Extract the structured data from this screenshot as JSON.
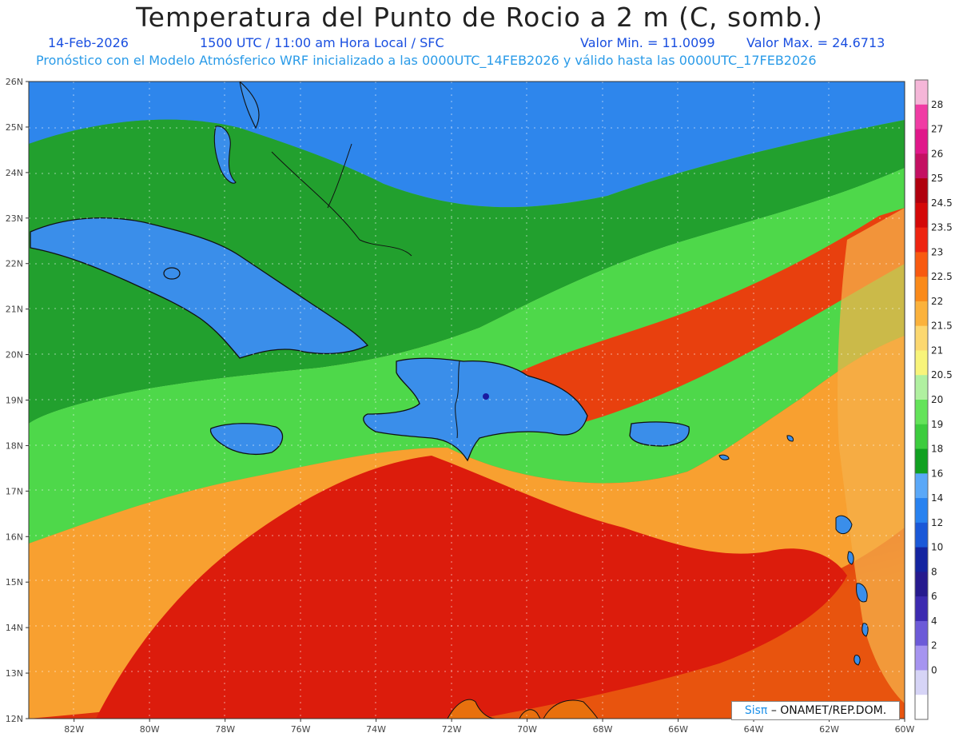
{
  "header": {
    "title": "Temperatura del Punto de Rocio a 2 m (C, somb.)",
    "date": "14-Feb-2026",
    "time": "1500 UTC / 11:00 am Hora Local / SFC",
    "min_value": "Valor Min. = 11.0099",
    "max_value": "Valor Max. = 24.6713",
    "model_info": "Pronóstico con el Modelo Atmósferico WRF inicializado a las 0000UTC_14FEB2026 y válido hasta las  0000UTC_17FEB2026"
  },
  "map": {
    "lat_labels": [
      "26N",
      "25N",
      "24N",
      "23N",
      "22N",
      "21N",
      "20N",
      "19N",
      "18N",
      "17N",
      "16N",
      "15N",
      "14N",
      "13N",
      "12N"
    ],
    "lon_labels": [
      "82W",
      "80W",
      "78W",
      "76W",
      "74W",
      "72W",
      "70W",
      "68W",
      "66W",
      "64W",
      "62W",
      "60W"
    ],
    "extent": {
      "lon_min": -83.2,
      "lon_max": -60,
      "lat_min": 12,
      "lat_max": 26
    }
  },
  "colorbar": {
    "labels": [
      "28",
      "27",
      "26",
      "25",
      "24.5",
      "23.5",
      "23",
      "22.5",
      "22",
      "21.5",
      "21",
      "20.5",
      "20",
      "19",
      "18",
      "16",
      "14",
      "12",
      "10",
      "8",
      "6",
      "4",
      "2",
      "0"
    ],
    "colors": [
      "#f5b6d8",
      "#f03ca4",
      "#e0188a",
      "#c41062",
      "#b0000e",
      "#d40808",
      "#ee2410",
      "#f85a10",
      "#fa8a1a",
      "#fbb23c",
      "#fcd870",
      "#f8f47a",
      "#b0f0a0",
      "#64e35a",
      "#3ccc3e",
      "#10a020",
      "#5aa8f8",
      "#2882f0",
      "#1a58d8",
      "#1424a0",
      "#261a8e",
      "#3c2ab0",
      "#6c5ad8",
      "#a694f0",
      "#d6d4f6",
      "#ffffff"
    ]
  },
  "footer": {
    "badge_pi": "Sisπ",
    "badge_text": "– ONAMET/REP.DOM."
  }
}
